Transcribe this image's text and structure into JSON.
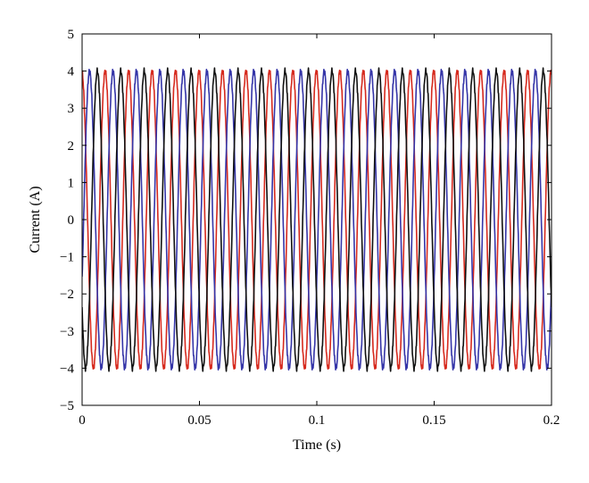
{
  "chart_data": {
    "type": "line",
    "title": "",
    "xlabel": "Time (s)",
    "ylabel": "Current (A)",
    "xlim": [
      0,
      0.2
    ],
    "ylim": [
      -5,
      5
    ],
    "xticks": [
      0,
      0.05,
      0.1,
      0.15,
      0.2
    ],
    "xtick_labels": [
      "0",
      "0.05",
      "0.1",
      "0.15",
      "0.2"
    ],
    "yticks": [
      -5,
      -4,
      -3,
      -2,
      -1,
      0,
      1,
      2,
      3,
      4,
      5
    ],
    "ytick_labels": [
      "−5",
      "−4",
      "−3",
      "−2",
      "−1",
      "0",
      "1",
      "2",
      "3",
      "4",
      "5"
    ],
    "grid": false,
    "legend": "none",
    "waveform": "three-phase sinusoid",
    "amplitude": 4,
    "frequency_hz": 100,
    "series": [
      {
        "color": "#d62a1e",
        "phase_deg": 96
      },
      {
        "color": "#3535a8",
        "phase_deg": -24
      },
      {
        "color": "#111111",
        "phase_deg": -144
      }
    ]
  }
}
